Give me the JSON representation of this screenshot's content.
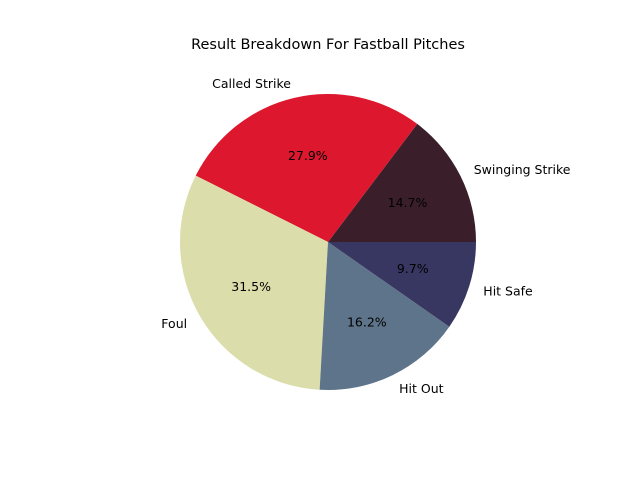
{
  "chart_data": {
    "type": "pie",
    "title": "Result Breakdown For Fastball Pitches",
    "slices": [
      {
        "label": "Swinging Strike",
        "value": 14.7,
        "pct_label": "14.7%",
        "color": "#3a1f2b"
      },
      {
        "label": "Called Strike",
        "value": 27.9,
        "pct_label": "27.9%",
        "color": "#dc172e"
      },
      {
        "label": "Foul",
        "value": 31.5,
        "pct_label": "31.5%",
        "color": "#dbdeaa"
      },
      {
        "label": "Hit Out",
        "value": 16.2,
        "pct_label": "16.2%",
        "color": "#5e748a"
      },
      {
        "label": "Hit Safe",
        "value": 9.7,
        "pct_label": "9.7%",
        "color": "#383761"
      }
    ]
  }
}
